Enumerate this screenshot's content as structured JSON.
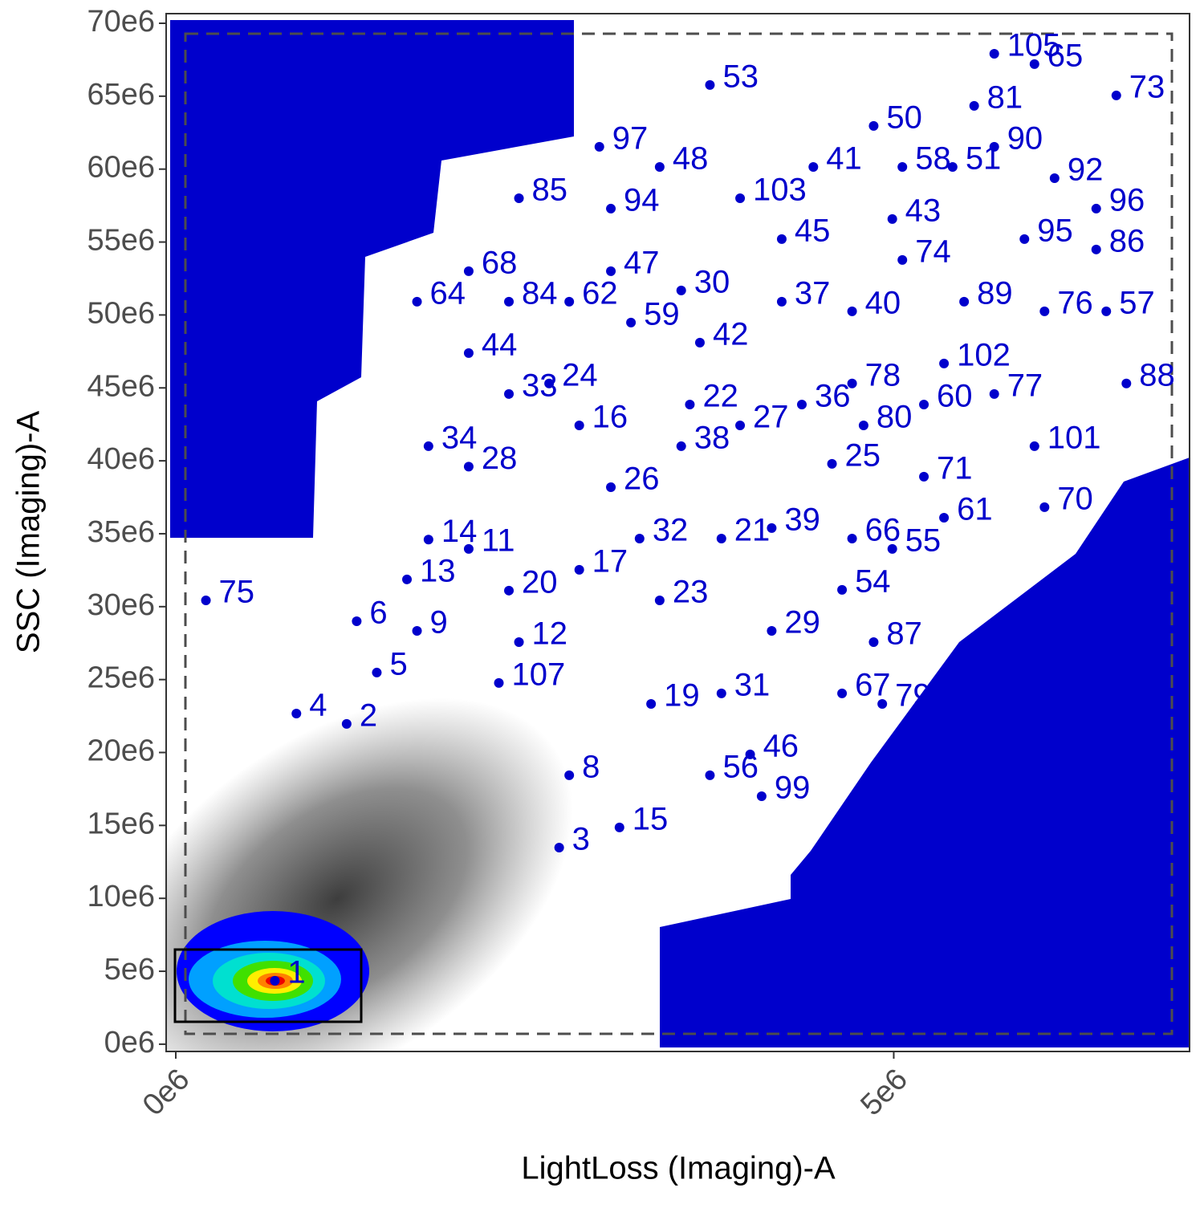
{
  "chart_data": {
    "type": "scatter",
    "xlabel": "LightLoss (Imaging)-A",
    "ylabel": "SSC (Imaging)-A",
    "xlim": [
      -67000,
      7060000
    ],
    "ylim": [
      -500000,
      70660000
    ],
    "xticks": [
      {
        "value": 0,
        "label": "0e6"
      },
      {
        "value": 5000000,
        "label": "5e6"
      }
    ],
    "yticks": [
      {
        "value": 0,
        "label": "0e6"
      },
      {
        "value": 5000000,
        "label": "5e6"
      },
      {
        "value": 10000000,
        "label": "10e6"
      },
      {
        "value": 15000000,
        "label": "15e6"
      },
      {
        "value": 20000000,
        "label": "20e6"
      },
      {
        "value": 25000000,
        "label": "25e6"
      },
      {
        "value": 30000000,
        "label": "30e6"
      },
      {
        "value": 35000000,
        "label": "35e6"
      },
      {
        "value": 40000000,
        "label": "40e6"
      },
      {
        "value": 45000000,
        "label": "45e6"
      },
      {
        "value": 50000000,
        "label": "50e6"
      },
      {
        "value": 55000000,
        "label": "55e6"
      },
      {
        "value": 60000000,
        "label": "60e6"
      },
      {
        "value": 65000000,
        "label": "65e6"
      },
      {
        "value": 70000000,
        "label": "70e6"
      }
    ],
    "color": "#0000cc",
    "point_labels": [
      "1",
      "2",
      "3",
      "4",
      "5",
      "6",
      "8",
      "9",
      "11",
      "12",
      "13",
      "14",
      "15",
      "16",
      "17",
      "19",
      "20",
      "21",
      "22",
      "23",
      "24",
      "25",
      "26",
      "27",
      "28",
      "29",
      "30",
      "31",
      "32",
      "33",
      "34",
      "36",
      "37",
      "38",
      "39",
      "40",
      "41",
      "42",
      "43",
      "44",
      "45",
      "46",
      "47",
      "48",
      "50",
      "51",
      "53",
      "54",
      "55",
      "56",
      "57",
      "58",
      "59",
      "60",
      "61",
      "62",
      "64",
      "65",
      "66",
      "67",
      "68",
      "70",
      "71",
      "73",
      "74",
      "75",
      "76",
      "77",
      "78",
      "79",
      "80",
      "81",
      "84",
      "85",
      "86",
      "87",
      "88",
      "89",
      "90",
      "92",
      "94",
      "95",
      "96",
      "97",
      "99",
      "101",
      "102",
      "103",
      "105",
      "107"
    ],
    "x": [
      690000,
      1190000,
      2670000,
      840000,
      1400000,
      1260000,
      2740000,
      1680000,
      2040000,
      2390000,
      1610000,
      1760000,
      3090000,
      2810000,
      2810000,
      3310000,
      2320000,
      3800000,
      3580000,
      3370000,
      2600000,
      4570000,
      3030000,
      3930000,
      2040000,
      4150000,
      3520000,
      3800000,
      3230000,
      2320000,
      1760000,
      4360000,
      4220000,
      3520000,
      4150000,
      4710000,
      4440000,
      3650000,
      4990000,
      2040000,
      4220000,
      4000000,
      3030000,
      3370000,
      4860000,
      5410000,
      3720000,
      4640000,
      4990000,
      3720000,
      6480000,
      5060000,
      3170000,
      5210000,
      5350000,
      2740000,
      1680000,
      5980000,
      4710000,
      4640000,
      2040000,
      6050000,
      5210000,
      6550000,
      5060000,
      210000,
      6050000,
      5700000,
      4710000,
      4920000,
      4790000,
      5560000,
      2320000,
      2390000,
      6410000,
      4860000,
      6620000,
      5490000,
      5700000,
      6120000,
      3030000,
      5910000,
      6410000,
      2950000,
      4080000,
      5980000,
      5350000,
      3930000,
      5700000,
      2250000
    ],
    "y": [
      4350000,
      21960000,
      13480000,
      22670000,
      25480000,
      29000000,
      18440000,
      28340000,
      33960000,
      27570000,
      31870000,
      34600000,
      14860000,
      42430000,
      32530000,
      23330000,
      31100000,
      34670000,
      43860000,
      30430000,
      45300000,
      39790000,
      38190000,
      42430000,
      39600000,
      28340000,
      51680000,
      24050000,
      34670000,
      44580000,
      41000000,
      43860000,
      50910000,
      41000000,
      35390000,
      50250000,
      60150000,
      48100000,
      56580000,
      47390000,
      55200000,
      19870000,
      53000000,
      60150000,
      62960000,
      60150000,
      65770000,
      31150000,
      33960000,
      18440000,
      50250000,
      60150000,
      49480000,
      43860000,
      36100000,
      50910000,
      50910000,
      67200000,
      34670000,
      24050000,
      53000000,
      36820000,
      38910000,
      65050000,
      53770000,
      30430000,
      50250000,
      44580000,
      45300000,
      23330000,
      42430000,
      64340000,
      50910000,
      58000000,
      54490000,
      27570000,
      45300000,
      50910000,
      61530000,
      59380000,
      57290000,
      55200000,
      57290000,
      61530000,
      17000000,
      41000000,
      46670000,
      58000000,
      67910000,
      24770000
    ]
  }
}
